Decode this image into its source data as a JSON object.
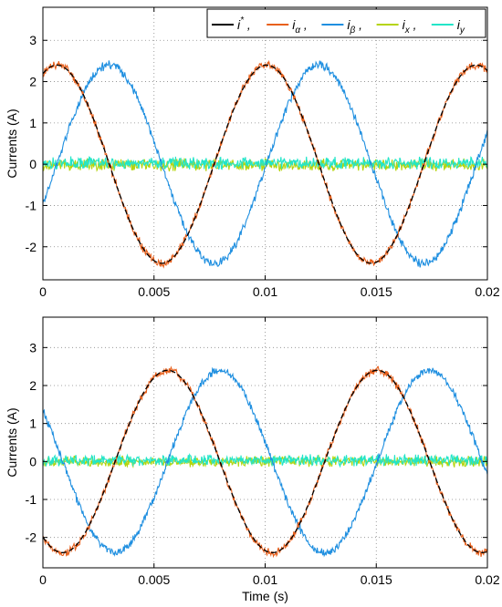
{
  "chart_data": [
    {
      "type": "line",
      "panel": "top",
      "xlabel": "",
      "ylabel": "Currents (A)",
      "xlim": [
        0,
        0.02
      ],
      "ylim": [
        -2.8,
        3.8
      ],
      "xticks": [
        "0",
        "0.005",
        "0.01",
        "0.015",
        "0.02"
      ],
      "yticks": [
        "-2",
        "-1",
        "0",
        "1",
        "2",
        "3"
      ],
      "grid": true,
      "legend_position": "top-right",
      "legend": [
        {
          "label": "i",
          "sup": "*",
          "sub": "",
          "sep": ",",
          "color": "#000000"
        },
        {
          "label": "i",
          "sup": "",
          "sub": "α",
          "sep": ",",
          "color": "#e8601c"
        },
        {
          "label": "i",
          "sup": "",
          "sub": "β",
          "sep": ",",
          "color": "#1f8fe0"
        },
        {
          "label": "i",
          "sup": "",
          "sub": "x",
          "sep": ",",
          "color": "#b5d40c"
        },
        {
          "label": "i",
          "sup": "",
          "sub": "y",
          "sep": "",
          "color": "#22e5c8"
        }
      ],
      "series": [
        {
          "key": "ref",
          "amplitude": 2.4,
          "frequency_hz": 106,
          "phase_deg": 66,
          "color": "#000000",
          "dashed": true
        },
        {
          "key": "alpha",
          "amplitude": 2.4,
          "frequency_hz": 106,
          "phase_deg": 66,
          "color": "#e8601c"
        },
        {
          "key": "beta",
          "amplitude": 2.4,
          "frequency_hz": 106,
          "phase_deg": -24,
          "color": "#1f8fe0"
        },
        {
          "key": "x",
          "amplitude": 0,
          "offset": -0.02,
          "color": "#b5d40c"
        },
        {
          "key": "y",
          "amplitude": 0,
          "offset": 0.03,
          "color": "#22e5c8"
        }
      ]
    },
    {
      "type": "line",
      "panel": "bottom",
      "xlabel": "Time (s)",
      "ylabel": "Currents (A)",
      "xlim": [
        0,
        0.02
      ],
      "ylim": [
        -2.8,
        3.8
      ],
      "xticks": [
        "0",
        "0.005",
        "0.01",
        "0.015",
        "0.02"
      ],
      "yticks": [
        "-2",
        "-1",
        "0",
        "1",
        "2",
        "3"
      ],
      "grid": true,
      "series": [
        {
          "key": "ref",
          "amplitude": 2.4,
          "frequency_hz": 106,
          "phase_deg": -124,
          "color": "#000000",
          "dashed": true
        },
        {
          "key": "alpha",
          "amplitude": 2.4,
          "frequency_hz": 106,
          "phase_deg": -124,
          "color": "#e8601c"
        },
        {
          "key": "beta",
          "amplitude": 2.4,
          "frequency_hz": 106,
          "phase_deg": 146,
          "color": "#1f8fe0"
        },
        {
          "key": "x",
          "amplitude": 0,
          "offset": 0.0,
          "color": "#b5d40c"
        },
        {
          "key": "y",
          "amplitude": 0,
          "offset": 0.03,
          "color": "#22e5c8"
        }
      ]
    }
  ]
}
